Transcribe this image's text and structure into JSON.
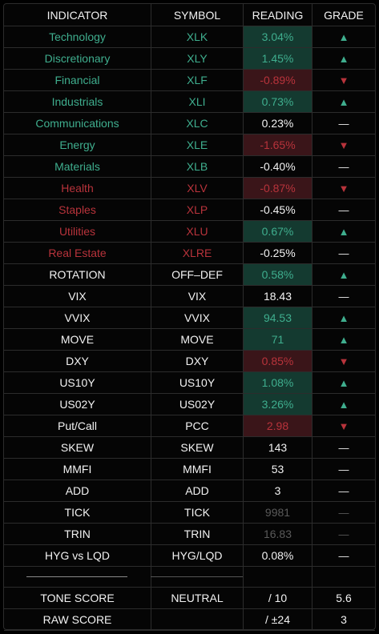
{
  "table": {
    "header": [
      "INDICATOR",
      "SYMBOL",
      "READING",
      "GRADE"
    ],
    "rows": [
      {
        "cells": [
          "Technology",
          "XLK",
          "3.04%",
          "▲"
        ],
        "label_color": "green",
        "reading_style": "up"
      },
      {
        "cells": [
          "Discretionary",
          "XLY",
          "1.45%",
          "▲"
        ],
        "label_color": "green",
        "reading_style": "up"
      },
      {
        "cells": [
          "Financial",
          "XLF",
          "-0.89%",
          "▼"
        ],
        "label_color": "green",
        "reading_style": "down"
      },
      {
        "cells": [
          "Industrials",
          "XLI",
          "0.73%",
          "▲"
        ],
        "label_color": "green",
        "reading_style": "up"
      },
      {
        "cells": [
          "Communications",
          "XLC",
          "0.23%",
          "—"
        ],
        "label_color": "green",
        "reading_style": "plain"
      },
      {
        "cells": [
          "Energy",
          "XLE",
          "-1.65%",
          "▼"
        ],
        "label_color": "green",
        "reading_style": "down"
      },
      {
        "cells": [
          "Materials",
          "XLB",
          "-0.40%",
          "—"
        ],
        "label_color": "green",
        "reading_style": "plain"
      },
      {
        "cells": [
          "Health",
          "XLV",
          "-0.87%",
          "▼"
        ],
        "label_color": "red",
        "reading_style": "down"
      },
      {
        "cells": [
          "Staples",
          "XLP",
          "-0.45%",
          "—"
        ],
        "label_color": "red",
        "reading_style": "plain"
      },
      {
        "cells": [
          "Utilities",
          "XLU",
          "0.67%",
          "▲"
        ],
        "label_color": "red",
        "reading_style": "up"
      },
      {
        "cells": [
          "Real Estate",
          "XLRE",
          "-0.25%",
          "—"
        ],
        "label_color": "red",
        "reading_style": "plain"
      },
      {
        "cells": [
          "ROTATION",
          "OFF–DEF",
          "0.58%",
          "▲"
        ],
        "label_color": "white",
        "reading_style": "up"
      },
      {
        "cells": [
          "VIX",
          "VIX",
          "18.43",
          "—"
        ],
        "label_color": "white",
        "reading_style": "plain"
      },
      {
        "cells": [
          "VVIX",
          "VVIX",
          "94.53",
          "▲"
        ],
        "label_color": "white",
        "reading_style": "up"
      },
      {
        "cells": [
          "MOVE",
          "MOVE",
          "71",
          "▲"
        ],
        "label_color": "white",
        "reading_style": "up"
      },
      {
        "cells": [
          "DXY",
          "DXY",
          "0.85%",
          "▼"
        ],
        "label_color": "white",
        "reading_style": "down"
      },
      {
        "cells": [
          "US10Y",
          "US10Y",
          "1.08%",
          "▲"
        ],
        "label_color": "white",
        "reading_style": "up"
      },
      {
        "cells": [
          "US02Y",
          "US02Y",
          "3.26%",
          "▲"
        ],
        "label_color": "white",
        "reading_style": "up"
      },
      {
        "cells": [
          "Put/Call",
          "PCC",
          "2.98",
          "▼"
        ],
        "label_color": "white",
        "reading_style": "down"
      },
      {
        "cells": [
          "SKEW",
          "SKEW",
          "143",
          "—"
        ],
        "label_color": "white",
        "reading_style": "plain"
      },
      {
        "cells": [
          "MMFI",
          "MMFI",
          "53",
          "—"
        ],
        "label_color": "white",
        "reading_style": "plain"
      },
      {
        "cells": [
          "ADD",
          "ADD",
          "3",
          "—"
        ],
        "label_color": "white",
        "reading_style": "plain"
      },
      {
        "cells": [
          "TICK",
          "TICK",
          "9981",
          "—"
        ],
        "label_color": "white",
        "reading_style": "muted"
      },
      {
        "cells": [
          "TRIN",
          "TRIN",
          "16.83",
          "—"
        ],
        "label_color": "white",
        "reading_style": "muted"
      },
      {
        "cells": [
          "HYG vs LQD",
          "HYG/LQD",
          "0.08%",
          "—"
        ],
        "label_color": "white",
        "reading_style": "plain"
      }
    ],
    "footer": [
      {
        "indicator": "TONE SCORE",
        "symbol": "NEUTRAL",
        "reading": "/ 10",
        "grade": "5.6"
      },
      {
        "indicator": "RAW SCORE",
        "reading": "/ ±24",
        "grade": "3"
      }
    ]
  }
}
